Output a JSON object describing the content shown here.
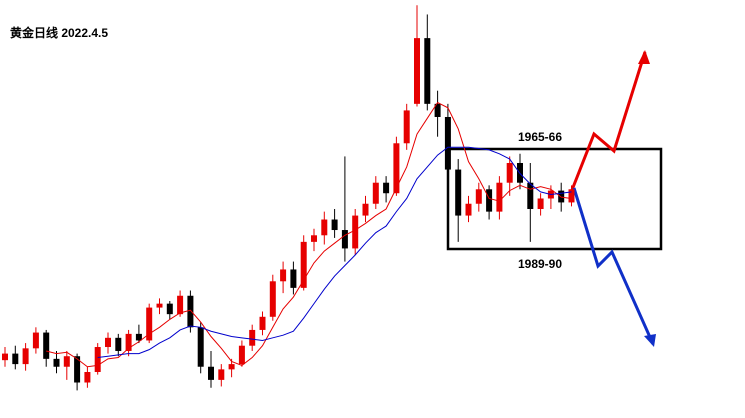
{
  "chart_data": {
    "type": "candlestick",
    "title": "黄金日线 2022.4.5",
    "annotations": [
      "1965-66",
      "1989-90"
    ],
    "ylim": [
      1761,
      2079
    ],
    "up_color": "#e60000",
    "down_color": "#000000",
    "open": [
      1805,
      1810,
      1802,
      1814,
      1826,
      1806,
      1800,
      1808,
      1788,
      1796,
      1815,
      1822,
      1812,
      1825,
      1820,
      1845,
      1848,
      1840,
      1854,
      1830,
      1800,
      1790,
      1798,
      1802,
      1816,
      1828,
      1838,
      1865,
      1874,
      1860,
      1895,
      1900,
      1912,
      1904,
      1890,
      1915,
      1924,
      1940,
      1932,
      1970,
      2000,
      2050,
      2000,
      1990,
      1950,
      1915,
      1924,
      1935,
      1918,
      1940,
      1955,
      1940,
      1920,
      1928,
      1934,
      1925
    ],
    "high": [
      1815,
      1816,
      1818,
      1830,
      1828,
      1812,
      1812,
      1810,
      1800,
      1818,
      1826,
      1825,
      1828,
      1832,
      1848,
      1852,
      1850,
      1858,
      1858,
      1834,
      1812,
      1802,
      1806,
      1820,
      1832,
      1842,
      1870,
      1880,
      1880,
      1900,
      1905,
      1918,
      1920,
      1960,
      1920,
      1930,
      1945,
      1945,
      1975,
      2000,
      2075,
      2068,
      2010,
      2000,
      1958,
      1930,
      1940,
      1938,
      1945,
      1960,
      1962,
      1955,
      1932,
      1938,
      1940,
      1938
    ],
    "low": [
      1800,
      1798,
      1797,
      1810,
      1800,
      1795,
      1790,
      1782,
      1784,
      1794,
      1810,
      1808,
      1808,
      1818,
      1818,
      1840,
      1836,
      1838,
      1826,
      1795,
      1784,
      1785,
      1792,
      1800,
      1812,
      1824,
      1835,
      1856,
      1855,
      1858,
      1888,
      1893,
      1898,
      1880,
      1885,
      1910,
      1920,
      1925,
      1930,
      1965,
      1998,
      1995,
      1975,
      1945,
      1895,
      1910,
      1918,
      1912,
      1912,
      1930,
      1935,
      1895,
      1915,
      1920,
      1918,
      1922
    ],
    "close": [
      1810,
      1802,
      1814,
      1826,
      1806,
      1800,
      1808,
      1788,
      1796,
      1815,
      1822,
      1812,
      1825,
      1820,
      1845,
      1848,
      1840,
      1854,
      1830,
      1800,
      1790,
      1798,
      1802,
      1816,
      1828,
      1838,
      1865,
      1874,
      1860,
      1895,
      1900,
      1912,
      1904,
      1890,
      1915,
      1924,
      1940,
      1932,
      1970,
      1995,
      2050,
      2000,
      1990,
      1950,
      1915,
      1924,
      1935,
      1918,
      1940,
      1955,
      1940,
      1920,
      1928,
      1934,
      1925,
      1935
    ],
    "lines": [
      {
        "color": "#e60000",
        "values": [
          null,
          null,
          null,
          null,
          1812,
          1810,
          1811,
          1806,
          1800,
          1801,
          1806,
          1807,
          1814,
          1819,
          1825,
          1830,
          1836,
          1841,
          1843,
          1834,
          1823,
          1814,
          1804,
          1801,
          1807,
          1816,
          1830,
          1844,
          1853,
          1866,
          1879,
          1888,
          1894,
          1900,
          1904,
          1909,
          1915,
          1920,
          1936,
          1952,
          1977,
          1989,
          2001,
          1997,
          1981,
          1956,
          1943,
          1928,
          1926,
          1934,
          1938,
          1935,
          1937,
          1935,
          1929,
          1928
        ]
      },
      {
        "color": "#0000cc",
        "values": [
          null,
          null,
          null,
          null,
          null,
          null,
          null,
          null,
          null,
          1807,
          1808,
          1809,
          1810,
          1810,
          1813,
          1818,
          1822,
          1828,
          1831,
          1830,
          1827,
          1825,
          1823,
          1822,
          1821,
          1820,
          1822,
          1824,
          1827,
          1837,
          1848,
          1859,
          1869,
          1877,
          1885,
          1894,
          1902,
          1907,
          1918,
          1928,
          1943,
          1952,
          1961,
          1967,
          1967,
          1967,
          1966,
          1965,
          1962,
          1958,
          1947,
          1939,
          1933,
          1931,
          1932,
          1933
        ]
      }
    ]
  }
}
